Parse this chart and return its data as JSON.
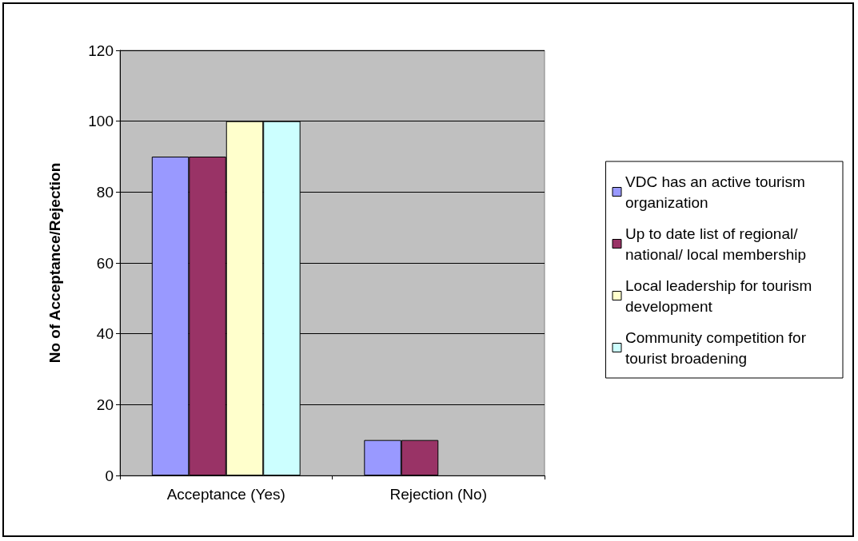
{
  "chart_data": {
    "type": "bar",
    "ylabel": "No of Acceptance/Rejection",
    "categories": [
      "Acceptance (Yes)",
      "Rejection (No)"
    ],
    "series": [
      {
        "name": "VDC has an active tourism organization",
        "color": "#9999ff",
        "values": [
          90,
          10
        ]
      },
      {
        "name": "Up to date list of regional/ national/ local membership",
        "color": "#993366",
        "values": [
          90,
          10
        ]
      },
      {
        "name": "Local leadership for tourism development",
        "color": "#ffffcc",
        "values": [
          100,
          null
        ]
      },
      {
        "name": "Community competition for tourist broadening",
        "color": "#ccffff",
        "values": [
          100,
          null
        ]
      }
    ],
    "ylim": [
      0,
      120
    ],
    "yticks": [
      0,
      20,
      40,
      60,
      80,
      100,
      120
    ],
    "grid": "y",
    "legend": "right"
  }
}
